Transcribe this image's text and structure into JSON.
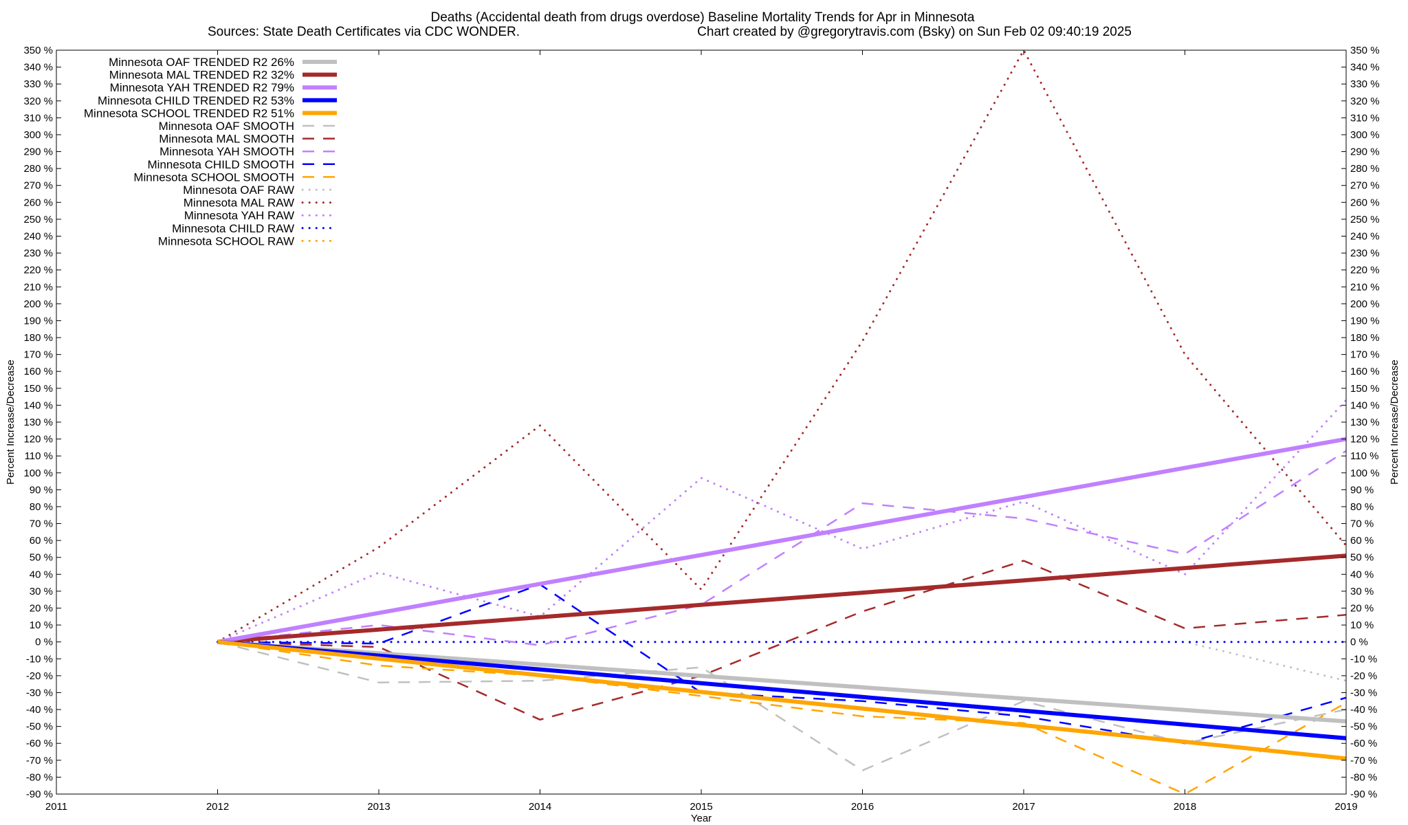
{
  "chart_data": {
    "type": "line",
    "title": "Deaths (Accidental death from drugs overdose)  Baseline Mortality Trends for Apr in Minnesota",
    "subtitle_left": "Sources: State Death Certificates via CDC WONDER.",
    "subtitle_right": "Chart created by @gregorytravis.com (Bsky) on Sun Feb 02 09:40:19 2025",
    "xlabel": "Year",
    "ylabel_left": "Percent Increase/Decrease",
    "ylabel_right": "Percent Increase/Decrease",
    "xlim": [
      2011,
      2019
    ],
    "ylim": [
      -90,
      350
    ],
    "x_ticks": [
      2011,
      2012,
      2013,
      2014,
      2015,
      2016,
      2017,
      2018,
      2019
    ],
    "y_tick_step": 10,
    "y_tick_suffix": " %",
    "grid": false,
    "legend_position": "top-left",
    "x": [
      2012,
      2013,
      2014,
      2015,
      2016,
      2017,
      2018,
      2019
    ],
    "series": [
      {
        "name": "Minnesota OAF TRENDED R2  26%",
        "style": "solid",
        "color": "#c0c0c0",
        "values": [
          0,
          -6.7,
          -13.4,
          -20.1,
          -26.9,
          -33.6,
          -40.3,
          -47
        ]
      },
      {
        "name": "Minnesota MAL TRENDED R2  32%",
        "style": "solid",
        "color": "#a52a2a",
        "values": [
          0,
          7.3,
          14.6,
          21.9,
          29.1,
          36.4,
          43.7,
          51
        ]
      },
      {
        "name": "Minnesota YAH TRENDED R2  79%",
        "style": "solid",
        "color": "#c080ff",
        "values": [
          0,
          17.1,
          34.3,
          51.4,
          68.6,
          85.7,
          102.9,
          120
        ]
      },
      {
        "name": "Minnesota CHILD TRENDED R2  53%",
        "style": "solid",
        "color": "#0000ff",
        "values": [
          0,
          -8.1,
          -16.3,
          -24.4,
          -32.6,
          -40.7,
          -48.9,
          -57
        ]
      },
      {
        "name": "Minnesota SCHOOL TRENDED R2  51%",
        "style": "solid",
        "color": "#ffa500",
        "values": [
          0,
          -9.9,
          -19.7,
          -29.6,
          -39.4,
          -49.3,
          -59.1,
          -69
        ]
      },
      {
        "name": "Minnesota OAF SMOOTH",
        "style": "dashed",
        "color": "#c0c0c0",
        "values": [
          0,
          -24,
          -23,
          -15,
          -76,
          -35,
          -60,
          -40
        ]
      },
      {
        "name": "Minnesota MAL SMOOTH",
        "style": "dashed",
        "color": "#a52a2a",
        "values": [
          0,
          -3,
          -46,
          -20,
          18,
          48,
          8,
          16
        ]
      },
      {
        "name": "Minnesota YAH SMOOTH",
        "style": "dashed",
        "color": "#c080ff",
        "values": [
          0,
          10,
          -2,
          22,
          82,
          73,
          52,
          113
        ]
      },
      {
        "name": "Minnesota CHILD SMOOTH",
        "style": "dashed",
        "color": "#0000ff",
        "values": [
          0,
          -1,
          34,
          -30,
          -35,
          -44,
          -60,
          -33
        ]
      },
      {
        "name": "Minnesota SCHOOL SMOOTH",
        "style": "dashed",
        "color": "#ffa500",
        "values": [
          0,
          -14,
          -20,
          -32,
          -44,
          -48,
          -90,
          -36
        ]
      },
      {
        "name": "Minnesota OAF RAW",
        "style": "dotted",
        "color": "#c0c0c0",
        "values": [
          0,
          0,
          0,
          0,
          0,
          0,
          0,
          -23
        ]
      },
      {
        "name": "Minnesota MAL RAW",
        "style": "dotted",
        "color": "#a52a2a",
        "values": [
          0,
          56,
          128,
          31,
          178,
          350,
          170,
          57
        ]
      },
      {
        "name": "Minnesota YAH RAW",
        "style": "dotted",
        "color": "#c080ff",
        "values": [
          0,
          41,
          15,
          97,
          55,
          83,
          40,
          143
        ]
      },
      {
        "name": "Minnesota CHILD RAW",
        "style": "dotted",
        "color": "#0000ff",
        "values": [
          0,
          0,
          0,
          0,
          0,
          0,
          0,
          0
        ]
      },
      {
        "name": "Minnesota SCHOOL RAW",
        "style": "dotted",
        "color": "#ffa500",
        "values": [
          null,
          null,
          null,
          null,
          null,
          null,
          null,
          null
        ]
      }
    ]
  }
}
